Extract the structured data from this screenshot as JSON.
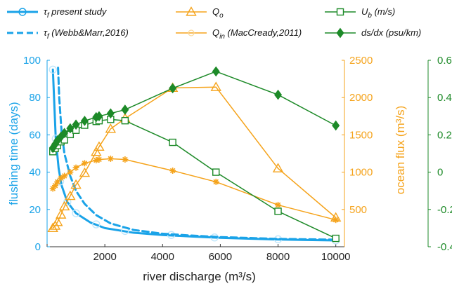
{
  "chart_data": {
    "type": "line",
    "colors": {
      "blue": "#1aa3e8",
      "orange": "#f5a31b",
      "green": "#1d8a28",
      "axis_black": "#333333"
    },
    "xlabel": "river discharge (m³/s)",
    "xlim": [
      0,
      10300
    ],
    "xticks": [
      0,
      2000,
      4000,
      6000,
      8000,
      10000
    ],
    "x_tick_labels": [
      "2000",
      "4000",
      "6000",
      "8000",
      "10000"
    ],
    "left_axis": {
      "label": "flushing time (days)",
      "lim": [
        0,
        100
      ],
      "ticks": [
        "0",
        "20",
        "40",
        "60",
        "80",
        "100"
      ]
    },
    "right_axis_1": {
      "label": "ocean flux (m³/s)",
      "lim": [
        0,
        2500
      ],
      "ticks": [
        "500",
        "1000",
        "1500",
        "2000",
        "2500"
      ]
    },
    "right_axis_2": {
      "label_visible": false,
      "lim": [
        -0.4,
        0.6
      ],
      "ticks": [
        "-0.4",
        "-0.2",
        "0",
        "0.2",
        "0.4",
        "0.6"
      ]
    },
    "legend": [
      {
        "key": "tau_present",
        "sym": "τ",
        "sub": "f",
        "text": " present study"
      },
      {
        "key": "tau_webb",
        "sym": "τ",
        "sub": "f",
        "text": " (Webb&Marr,2016)"
      },
      {
        "key": "qo",
        "sym": "Q",
        "sub": "o",
        "text": ""
      },
      {
        "key": "qin",
        "sym": "Q",
        "sub": "in",
        "text": " (MacCready,2011)"
      },
      {
        "key": "ub",
        "sym": "U",
        "sub": "b",
        "text": " (m/s)"
      },
      {
        "key": "dsdx",
        "sym": "",
        "sub": "",
        "text": "ds/dx (psu/km)"
      }
    ],
    "series": [
      {
        "key": "tau_present",
        "axis": "left",
        "color": "#1aa3e8",
        "dash": "",
        "width": 3,
        "x": [
          200,
          300,
          400,
          500,
          700,
          1000,
          1500,
          2000,
          3000,
          4000,
          5000,
          6000,
          7000,
          8000,
          9000,
          10000
        ],
        "y": [
          95,
          58,
          42,
          33,
          24,
          18,
          13,
          10,
          7.5,
          6.3,
          5.5,
          4.8,
          4.3,
          3.9,
          3.6,
          3.4
        ],
        "markers": {
          "shape": "circle",
          "faded": true,
          "x": [
            200,
            300,
            450,
            700,
            1000,
            1700,
            2700,
            4300,
            5800,
            8000,
            10000
          ],
          "y": [
            95,
            58,
            35,
            24,
            18,
            12,
            8.5,
            6.3,
            5.0,
            4.0,
            3.4
          ]
        }
      },
      {
        "key": "tau_webb",
        "axis": "left",
        "color": "#1aa3e8",
        "dash": "9,5",
        "width": 3,
        "x": [
          380,
          420,
          500,
          600,
          800,
          1000,
          1300,
          1700,
          2200,
          3000,
          4000,
          5000,
          6000,
          8000,
          10000
        ],
        "y": [
          96,
          80,
          62,
          50,
          38,
          30,
          23,
          17,
          12.5,
          9,
          7,
          6,
          5.2,
          4.2,
          3.8
        ]
      },
      {
        "key": "qo",
        "axis": "right1",
        "color": "#f5a31b",
        "dash": "",
        "width": 1.5,
        "x": [
          200,
          280,
          360,
          480,
          600,
          800,
          1000,
          1300,
          1700,
          1800,
          2200,
          2700,
          4350,
          5850,
          8000,
          10000
        ],
        "y": [
          250,
          280,
          330,
          430,
          540,
          680,
          830,
          990,
          1270,
          1340,
          1580,
          1720,
          2130,
          2140,
          1050,
          390
        ],
        "markers": {
          "shape": "triangle"
        }
      },
      {
        "key": "qin",
        "axis": "right1",
        "color": "#f5a31b",
        "dash": "",
        "width": 1.5,
        "x": [
          200,
          280,
          360,
          480,
          600,
          800,
          1000,
          1300,
          1700,
          1800,
          2200,
          2700,
          4350,
          5850,
          8000,
          10000
        ],
        "y": [
          780,
          820,
          870,
          920,
          950,
          1000,
          1060,
          1120,
          1160,
          1170,
          1180,
          1170,
          1020,
          870,
          560,
          360
        ],
        "markers": {
          "shape": "asterisk"
        }
      },
      {
        "key": "ub",
        "axis": "right2",
        "color": "#1d8a28",
        "dash": "",
        "width": 1.5,
        "x": [
          200,
          280,
          360,
          480,
          600,
          800,
          1000,
          1300,
          1700,
          1800,
          2200,
          2700,
          4350,
          5850,
          8000,
          10000
        ],
        "y": [
          0.11,
          0.127,
          0.143,
          0.163,
          0.173,
          0.202,
          0.225,
          0.252,
          0.272,
          0.276,
          0.283,
          0.276,
          0.16,
          0.0,
          -0.21,
          -0.355
        ],
        "markers": {
          "shape": "square"
        }
      },
      {
        "key": "dsdx",
        "axis": "right2",
        "color": "#1d8a28",
        "dash": "",
        "width": 1.5,
        "x": [
          200,
          280,
          360,
          480,
          600,
          800,
          1000,
          1300,
          1700,
          1800,
          2200,
          2700,
          4350,
          5850,
          8000,
          10000
        ],
        "y": [
          0.13,
          0.15,
          0.17,
          0.19,
          0.21,
          0.235,
          0.255,
          0.275,
          0.295,
          0.3,
          0.315,
          0.335,
          0.45,
          0.54,
          0.415,
          0.25
        ],
        "markers": {
          "shape": "diamond"
        }
      }
    ]
  }
}
